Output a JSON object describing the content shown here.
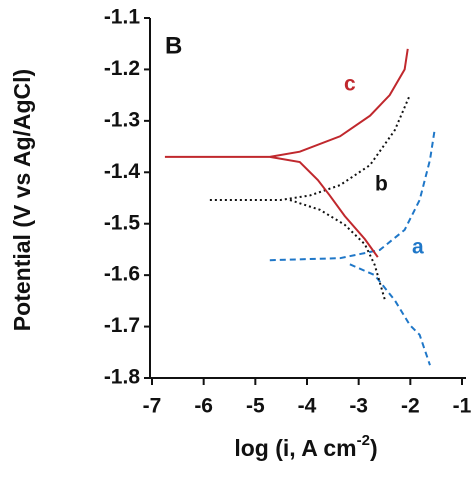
{
  "chart_data": {
    "type": "line",
    "panel_label": "B",
    "x_label": [
      "log (i, A cm",
      "-2",
      ")"
    ],
    "y_label": "Potential (V vs Ag/AgCl)",
    "xlim": [
      -7,
      -1
    ],
    "xticks": [
      -7,
      -6,
      -5,
      -4,
      -3,
      -2,
      -1
    ],
    "ylim": [
      -1.8,
      -1.1
    ],
    "yticks": [
      -1.1,
      -1.2,
      -1.3,
      -1.4,
      -1.5,
      -1.6,
      -1.7,
      -1.8
    ],
    "series": [
      {
        "name": "a",
        "color": "#1f77c8",
        "style": "dashed",
        "x": [
          -4.72,
          -3.36,
          -2.59,
          -2.11,
          -1.82,
          -1.62,
          -1.53,
          null,
          -3.17,
          -2.69,
          -2.3,
          -2.01,
          -1.82,
          -1.62
        ],
        "values": [
          -1.571,
          -1.567,
          -1.551,
          -1.512,
          -1.454,
          -1.376,
          -1.318,
          null,
          -1.579,
          -1.6,
          -1.649,
          -1.697,
          -1.716,
          -1.775
        ]
      },
      {
        "name": "b",
        "color": "#111111",
        "style": "dotted",
        "x": [
          -5.88,
          -4.52,
          -3.94,
          -3.36,
          -2.78,
          -2.3,
          -2.01,
          null,
          -4.33,
          -3.75,
          -3.27,
          -2.88,
          -2.69,
          -2.49
        ],
        "values": [
          -1.454,
          -1.454,
          -1.445,
          -1.425,
          -1.386,
          -1.318,
          -1.25,
          null,
          -1.454,
          -1.473,
          -1.502,
          -1.54,
          -1.58,
          -1.649
        ]
      },
      {
        "name": "c",
        "color": "#c0282d",
        "style": "solid",
        "x": [
          -6.75,
          -4.72,
          -4.14,
          -3.36,
          -2.78,
          -2.4,
          -2.11,
          -2.05,
          null,
          -4.72,
          -4.14,
          -3.79,
          -3.56,
          -3.27,
          -2.88,
          -2.63
        ],
        "values": [
          -1.37,
          -1.37,
          -1.36,
          -1.33,
          -1.29,
          -1.25,
          -1.2,
          -1.16,
          null,
          -1.37,
          -1.38,
          -1.415,
          -1.445,
          -1.485,
          -1.53,
          -1.565
        ]
      }
    ]
  }
}
